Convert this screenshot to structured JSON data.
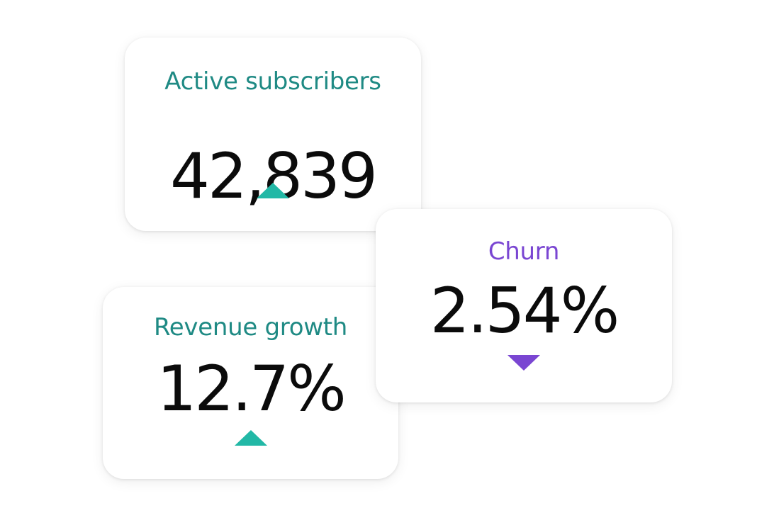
{
  "colors": {
    "positive": "#22b8a6",
    "positive_label": "#1f8a84",
    "negative": "#7a46d2",
    "negative_label": "#7a46d2",
    "value_text": "#0b0b0b"
  },
  "cards": [
    {
      "title": "Active subscribers",
      "value": "42,839",
      "trend": "up",
      "trend_icon": "triangle-up-icon"
    },
    {
      "title": "Revenue growth",
      "value": "12.7%",
      "trend": "up",
      "trend_icon": "triangle-up-icon"
    },
    {
      "title": "Churn",
      "value": "2.54%",
      "trend": "down",
      "trend_icon": "triangle-down-icon"
    }
  ]
}
